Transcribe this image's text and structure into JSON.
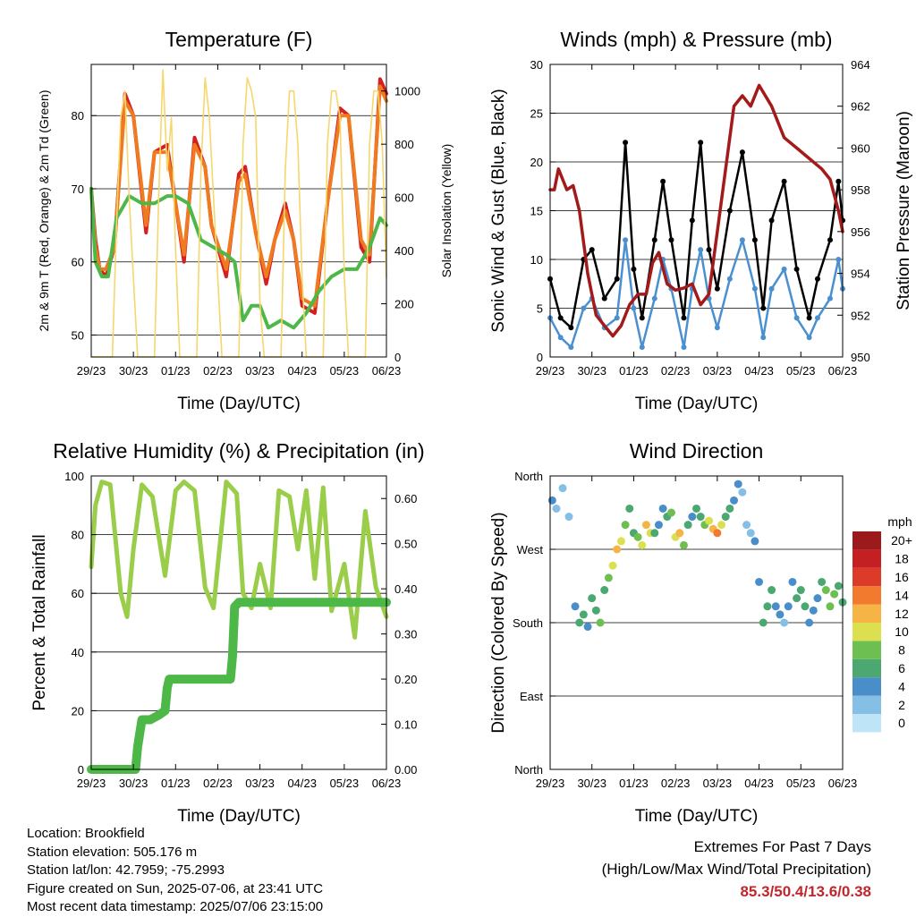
{
  "colors": {
    "temp_2m": "#d42020",
    "temp_9m": "#f07a20",
    "dewpoint": "#4db848",
    "solar": "#f5d76e",
    "gust": "#000000",
    "wind": "#4a90d0",
    "pressure": "#a31a1a",
    "rh": "#9acd4a",
    "precip": "#4db848"
  },
  "footer": {
    "location": "Location: Brookfield",
    "elevation": "Station elevation: 505.176 m",
    "latlon": "Station lat/lon: 42.7959; -75.2993",
    "created": "Figure created on Sun, 2025-07-06, at 23:41 UTC",
    "recent": "Most recent data timestamp: 2025/07/06 23:15:00",
    "extremes_title": "Extremes For Past 7 Days",
    "extremes_sub": "(High/Low/Max Wind/Total Precipitation)",
    "extremes_values": "85.3/50.4/13.6/0.38"
  },
  "chart_data": [
    {
      "type": "line",
      "title": "Temperature (F)",
      "xlabel": "Time (Day/UTC)",
      "ylabel": "2m & 9m T (Red, Orange) & 2m Td (Green)",
      "ylabel_right": "Solar Insolation (Yellow)",
      "x_ticks": [
        "29/23",
        "30/23",
        "01/23",
        "02/23",
        "03/23",
        "04/23",
        "05/23",
        "06/23"
      ],
      "xlim": [
        0,
        7
      ],
      "ylim": [
        47,
        87
      ],
      "y_ticks": [
        50,
        60,
        70,
        80
      ],
      "ylim_right": [
        0,
        1100
      ],
      "y_ticks_right": [
        0,
        200,
        400,
        600,
        800,
        1000
      ],
      "grid": true,
      "series": [
        {
          "name": "2m T",
          "x": [
            0,
            0.1,
            0.2,
            0.35,
            0.55,
            0.8,
            1.0,
            1.3,
            1.5,
            1.8,
            2.0,
            2.2,
            2.45,
            2.7,
            2.85,
            3.2,
            3.5,
            3.65,
            3.9,
            4.15,
            4.35,
            4.6,
            4.8,
            5.0,
            5.3,
            5.6,
            5.9,
            6.1,
            6.4,
            6.6,
            6.85,
            7.0
          ],
          "values": [
            70,
            63,
            59,
            58,
            62,
            83,
            80,
            64,
            75,
            76,
            68,
            60,
            77,
            73,
            65,
            58,
            72,
            73,
            64,
            57,
            63,
            68,
            63,
            54,
            53,
            68,
            81,
            80,
            62,
            60,
            85,
            83
          ]
        },
        {
          "name": "9m T",
          "x": [
            0,
            0.1,
            0.2,
            0.35,
            0.55,
            0.8,
            1.0,
            1.3,
            1.5,
            1.8,
            2.0,
            2.2,
            2.45,
            2.7,
            2.85,
            3.2,
            3.5,
            3.65,
            3.9,
            4.15,
            4.35,
            4.6,
            4.8,
            5.0,
            5.3,
            5.6,
            5.9,
            6.1,
            6.4,
            6.6,
            6.85,
            7.0
          ],
          "values": [
            70,
            62,
            59,
            59,
            62,
            82,
            80,
            65,
            75,
            75,
            68,
            61,
            76,
            73,
            65,
            59,
            71,
            72,
            64,
            58,
            63,
            67,
            63,
            55,
            54,
            68,
            80,
            80,
            63,
            61,
            84,
            82
          ]
        },
        {
          "name": "2m Td",
          "x": [
            0,
            0.1,
            0.25,
            0.4,
            0.6,
            0.9,
            1.2,
            1.5,
            1.8,
            2.0,
            2.3,
            2.6,
            2.9,
            3.2,
            3.4,
            3.6,
            3.8,
            4.0,
            4.2,
            4.5,
            4.8,
            5.1,
            5.4,
            5.7,
            6.0,
            6.3,
            6.6,
            6.85,
            7.0
          ],
          "values": [
            70,
            60,
            58,
            58,
            66,
            69,
            68,
            68,
            69,
            69,
            68,
            63,
            62,
            61,
            60,
            52,
            54,
            54,
            51,
            52,
            51,
            53,
            56,
            58,
            59,
            59,
            62,
            66,
            65
          ]
        },
        {
          "name": "Solar",
          "axis": "right",
          "x": [
            0,
            0.3,
            0.5,
            0.6,
            0.7,
            0.8,
            0.9,
            1.0,
            1.1,
            1.3,
            1.5,
            1.6,
            1.7,
            1.8,
            1.9,
            2.0,
            2.1,
            2.3,
            2.5,
            2.6,
            2.7,
            2.8,
            2.9,
            3.0,
            3.1,
            3.3,
            3.5,
            3.6,
            3.7,
            3.8,
            3.9,
            4.0,
            4.1,
            4.3,
            4.5,
            4.6,
            4.7,
            4.8,
            4.9,
            5.0,
            5.1,
            5.3,
            5.5,
            5.6,
            5.7,
            5.8,
            5.9,
            6.0,
            6.1,
            6.3,
            6.5,
            6.6,
            6.7,
            6.8,
            6.9,
            7.0
          ],
          "values": [
            0,
            0,
            0,
            500,
            900,
            1000,
            600,
            300,
            0,
            0,
            0,
            600,
            1080,
            700,
            900,
            400,
            0,
            0,
            0,
            700,
            1050,
            900,
            600,
            300,
            0,
            0,
            0,
            800,
            1050,
            1000,
            900,
            200,
            0,
            0,
            0,
            700,
            1000,
            1000,
            800,
            300,
            0,
            0,
            0,
            800,
            1000,
            1000,
            900,
            300,
            0,
            0,
            0,
            800,
            1000,
            1000,
            800,
            300
          ]
        }
      ]
    },
    {
      "type": "scatter",
      "title": "Winds (mph) & Pressure (mb)",
      "xlabel": "Time (Day/UTC)",
      "ylabel": "Sonic Wind & Gust (Blue, Black)",
      "ylabel_right": "Station Pressure (Maroon)",
      "x_ticks": [
        "29/23",
        "30/23",
        "01/23",
        "02/23",
        "03/23",
        "04/23",
        "05/23",
        "06/23"
      ],
      "xlim": [
        0,
        7
      ],
      "ylim": [
        0,
        30
      ],
      "y_ticks": [
        0,
        5,
        10,
        15,
        20,
        25,
        30
      ],
      "ylim_right": [
        950,
        964
      ],
      "y_ticks_right": [
        950,
        952,
        954,
        956,
        958,
        960,
        962,
        964
      ],
      "grid": true,
      "series": [
        {
          "name": "Gust",
          "x": [
            0,
            0.25,
            0.5,
            0.8,
            1.0,
            1.3,
            1.6,
            1.8,
            2.0,
            2.2,
            2.5,
            2.7,
            2.9,
            3.2,
            3.4,
            3.6,
            3.8,
            4.0,
            4.3,
            4.6,
            4.9,
            5.1,
            5.3,
            5.6,
            5.9,
            6.2,
            6.4,
            6.7,
            6.9,
            7.0
          ],
          "values": [
            8,
            4,
            3,
            10,
            11,
            6,
            8,
            22,
            9,
            4,
            12,
            18,
            12,
            4,
            14,
            22,
            11,
            7,
            15,
            21,
            12,
            5,
            14,
            18,
            9,
            4,
            8,
            12,
            18,
            14
          ]
        },
        {
          "name": "Wind",
          "x": [
            0,
            0.25,
            0.5,
            0.8,
            1.0,
            1.3,
            1.6,
            1.8,
            2.0,
            2.2,
            2.5,
            2.7,
            2.9,
            3.2,
            3.4,
            3.6,
            3.8,
            4.0,
            4.3,
            4.6,
            4.9,
            5.1,
            5.3,
            5.6,
            5.9,
            6.2,
            6.4,
            6.7,
            6.9,
            7.0
          ],
          "values": [
            4,
            2,
            1,
            5,
            6,
            3,
            4,
            12,
            5,
            1,
            6,
            10,
            7,
            1,
            7,
            11,
            6,
            3,
            8,
            12,
            7,
            2,
            7,
            9,
            4,
            2,
            4,
            6,
            10,
            7
          ]
        },
        {
          "name": "Pressure",
          "axis": "right",
          "x": [
            0,
            0.1,
            0.2,
            0.3,
            0.4,
            0.55,
            0.7,
            0.9,
            1.1,
            1.3,
            1.5,
            1.7,
            1.9,
            2.1,
            2.3,
            2.45,
            2.6,
            2.8,
            3.0,
            3.2,
            3.4,
            3.6,
            3.8,
            4.0,
            4.2,
            4.4,
            4.6,
            4.8,
            5.0,
            5.3,
            5.6,
            5.9,
            6.2,
            6.5,
            6.7,
            6.9,
            7.0
          ],
          "values": [
            958,
            958,
            959,
            958.5,
            958,
            958.2,
            957,
            954,
            952,
            951.5,
            951,
            951.5,
            952.5,
            953,
            953,
            954.5,
            955,
            953.5,
            953.2,
            953.3,
            953.5,
            952.5,
            953,
            956,
            959,
            962,
            962.5,
            962,
            963,
            962,
            960.5,
            960,
            959.5,
            959,
            958.5,
            957,
            956
          ]
        }
      ]
    },
    {
      "type": "line",
      "title": "Relative Humidity (%) & Precipitation (in)",
      "xlabel": "Time (Day/UTC)",
      "ylabel": "Percent & Total Rainfall",
      "x_ticks": [
        "29/23",
        "30/23",
        "01/23",
        "02/23",
        "03/23",
        "04/23",
        "05/23",
        "06/23"
      ],
      "xlim": [
        0,
        7
      ],
      "ylim": [
        0,
        100
      ],
      "y_ticks": [
        0,
        20,
        40,
        60,
        80,
        100
      ],
      "ylim_right": [
        0,
        0.65
      ],
      "y_ticks_right": [
        "0.00",
        "0.10",
        "0.20",
        "0.30",
        "0.40",
        "0.50",
        "0.60"
      ],
      "grid": true,
      "series": [
        {
          "name": "RH",
          "x": [
            0,
            0.1,
            0.25,
            0.45,
            0.7,
            0.85,
            1.0,
            1.2,
            1.45,
            1.75,
            2.0,
            2.2,
            2.45,
            2.7,
            2.9,
            3.2,
            3.45,
            3.6,
            3.8,
            4.0,
            4.25,
            4.45,
            4.7,
            4.9,
            5.1,
            5.3,
            5.5,
            5.7,
            6.0,
            6.25,
            6.5,
            6.75,
            7.0
          ],
          "values": [
            69,
            90,
            98,
            97,
            60,
            52,
            75,
            97,
            93,
            66,
            95,
            98,
            95,
            62,
            55,
            98,
            94,
            60,
            55,
            70,
            55,
            95,
            93,
            75,
            95,
            65,
            96,
            54,
            70,
            45,
            88,
            62,
            52
          ]
        },
        {
          "name": "Precip",
          "axis": "right",
          "x": [
            0,
            0.5,
            1.05,
            1.1,
            1.2,
            1.4,
            1.6,
            1.75,
            1.8,
            1.85,
            2.2,
            2.5,
            3.3,
            3.35,
            3.4,
            3.5,
            4.0,
            5.0,
            6.0,
            7.0
          ],
          "values": [
            0,
            0,
            0,
            0.05,
            0.11,
            0.11,
            0.12,
            0.13,
            0.18,
            0.2,
            0.2,
            0.2,
            0.2,
            0.25,
            0.36,
            0.37,
            0.37,
            0.37,
            0.37,
            0.37
          ]
        }
      ]
    },
    {
      "type": "scatter",
      "title": "Wind Direction",
      "xlabel": "Time (Day/UTC)",
      "ylabel": "Direction (Colored By Speed)",
      "x_ticks": [
        "29/23",
        "30/23",
        "01/23",
        "02/23",
        "03/23",
        "04/23",
        "05/23",
        "06/23"
      ],
      "xlim": [
        0,
        7
      ],
      "ylim": [
        0,
        360
      ],
      "y_tick_labels": [
        "North",
        "East",
        "South",
        "West",
        "North"
      ],
      "y_ticks": [
        0,
        90,
        180,
        270,
        360
      ],
      "grid": true,
      "colorbar": {
        "title": "mph",
        "labels": [
          "0",
          "2",
          "4",
          "6",
          "8",
          "10",
          "12",
          "14",
          "16",
          "18",
          "20+"
        ],
        "colors": [
          "#bde4f7",
          "#85bfe6",
          "#4a8ec9",
          "#4aa870",
          "#6cbf50",
          "#dce050",
          "#f6b346",
          "#f27a2e",
          "#dd3b2a",
          "#c41f23",
          "#9b1a1a"
        ]
      },
      "series": [
        {
          "name": "Direction",
          "x": [
            0.05,
            0.15,
            0.3,
            0.45,
            0.6,
            0.7,
            0.8,
            0.9,
            1.0,
            1.1,
            1.2,
            1.3,
            1.4,
            1.5,
            1.6,
            1.7,
            1.8,
            1.9,
            2.0,
            2.1,
            2.2,
            2.3,
            2.4,
            2.5,
            2.6,
            2.7,
            2.8,
            2.9,
            3.0,
            3.1,
            3.2,
            3.3,
            3.4,
            3.5,
            3.6,
            3.7,
            3.8,
            3.9,
            4.0,
            4.1,
            4.2,
            4.3,
            4.4,
            4.5,
            4.6,
            4.7,
            4.8,
            4.9,
            5.0,
            5.1,
            5.2,
            5.3,
            5.4,
            5.5,
            5.6,
            5.7,
            5.8,
            5.9,
            6.0,
            6.1,
            6.2,
            6.3,
            6.4,
            6.5,
            6.6,
            6.7,
            6.8,
            6.9,
            7.0
          ],
          "values": [
            330,
            320,
            345,
            310,
            200,
            180,
            190,
            175,
            210,
            195,
            180,
            220,
            235,
            250,
            270,
            280,
            300,
            320,
            290,
            285,
            275,
            300,
            290,
            290,
            300,
            320,
            310,
            315,
            285,
            290,
            275,
            300,
            310,
            320,
            310,
            300,
            305,
            295,
            290,
            300,
            310,
            320,
            330,
            350,
            340,
            300,
            290,
            280,
            230,
            180,
            200,
            220,
            200,
            190,
            180,
            200,
            230,
            210,
            220,
            200,
            180,
            195,
            210,
            230,
            220,
            200,
            215,
            225,
            205
          ],
          "speeds": [
            3,
            2,
            1,
            2,
            4,
            6,
            5,
            4,
            5,
            6,
            7,
            6,
            8,
            10,
            12,
            9,
            7,
            5,
            6,
            7,
            10,
            12,
            9,
            6,
            4,
            3,
            5,
            8,
            10,
            11,
            8,
            6,
            4,
            5,
            6,
            7,
            9,
            12,
            13,
            9,
            6,
            5,
            4,
            3,
            2,
            1,
            2,
            3,
            4,
            5,
            6,
            5,
            4,
            3,
            2,
            3,
            4,
            5,
            6,
            5,
            4,
            3,
            4,
            5,
            7,
            8,
            7,
            6,
            5
          ]
        }
      ]
    }
  ]
}
